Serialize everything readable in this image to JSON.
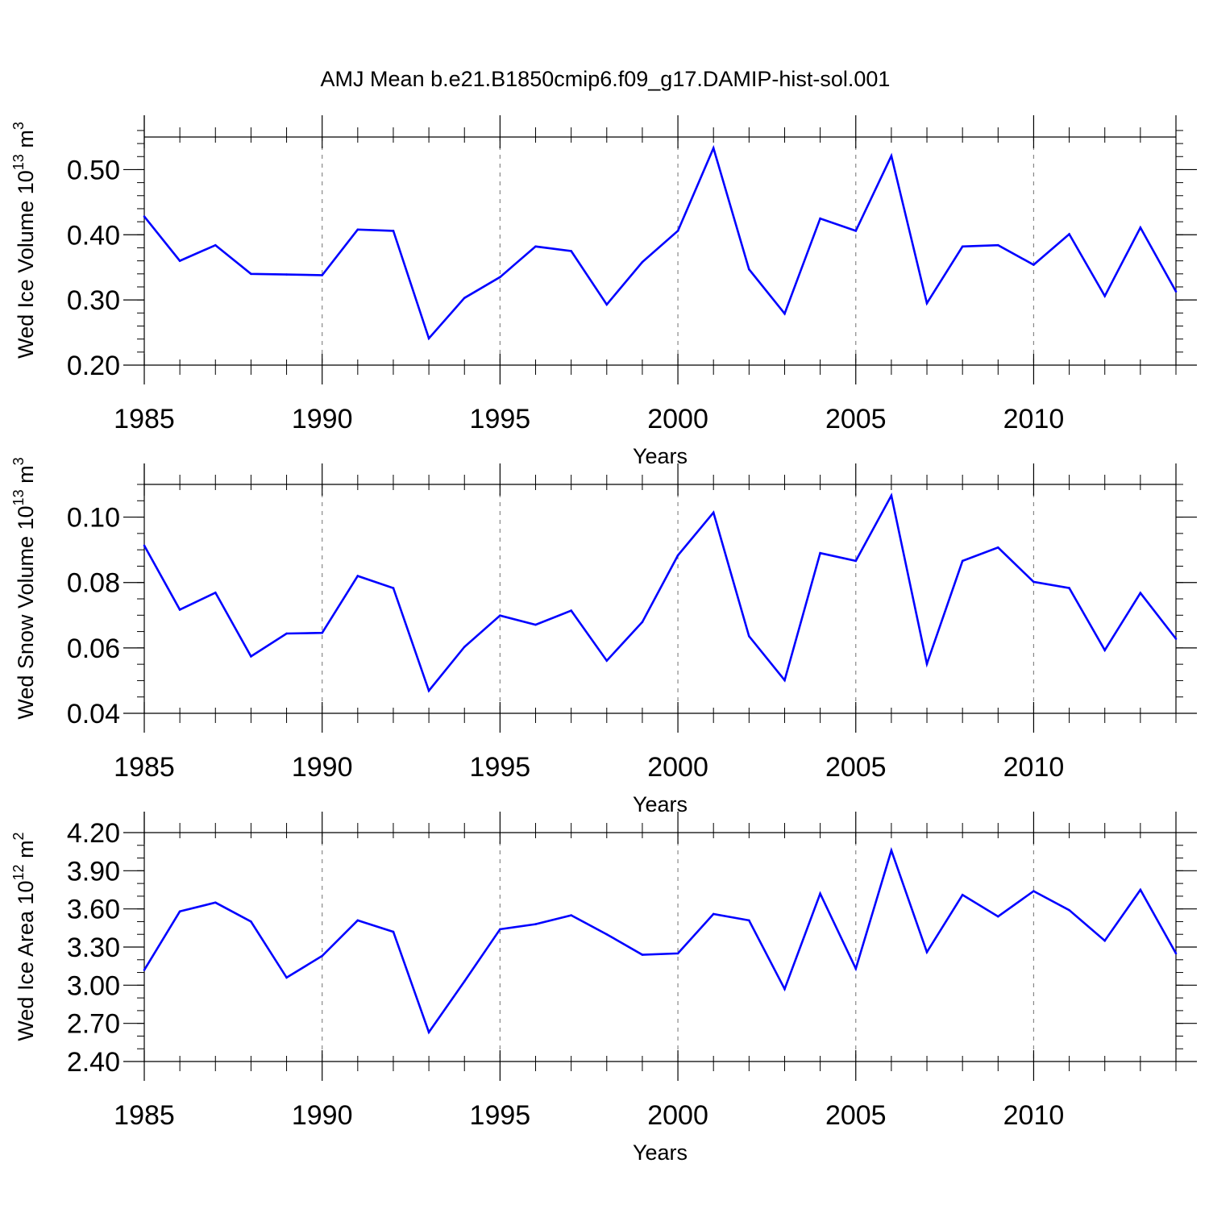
{
  "title": "AMJ Mean b.e21.B1850cmip6.f09_g17.DAMIP-hist-sol.001",
  "line_color": "#0000ff",
  "chart_data": [
    {
      "type": "line",
      "name": "ice-volume",
      "ylabel_main": "Wed Ice Volume 10",
      "ylabel_exp": "13",
      "ylabel_unit": " m",
      "ylabel_unit_exp": "3",
      "xlabel": "Years",
      "xlim": [
        1985,
        2014
      ],
      "ylim": [
        0.2,
        0.55
      ],
      "xticks": [
        1985,
        1990,
        1995,
        2000,
        2005,
        2010
      ],
      "xtick_labels": [
        "1985",
        "1990",
        "1995",
        "2000",
        "2005",
        "2010"
      ],
      "yticks": [
        0.2,
        0.3,
        0.4,
        0.5
      ],
      "ytick_labels": [
        "0.20",
        "0.30",
        "0.40",
        "0.50"
      ],
      "yminor_step": 0.02,
      "x": [
        1985,
        1986,
        1987,
        1988,
        1989,
        1990,
        1991,
        1992,
        1993,
        1994,
        1995,
        1996,
        1997,
        1998,
        1999,
        2000,
        2001,
        2002,
        2003,
        2004,
        2005,
        2006,
        2007,
        2008,
        2009,
        2010,
        2011,
        2012,
        2013,
        2014
      ],
      "values": [
        0.428,
        0.36,
        0.384,
        0.34,
        0.339,
        0.338,
        0.408,
        0.406,
        0.241,
        0.303,
        0.335,
        0.382,
        0.375,
        0.293,
        0.358,
        0.406,
        0.533,
        0.347,
        0.279,
        0.425,
        0.406,
        0.521,
        0.295,
        0.382,
        0.384,
        0.354,
        0.401,
        0.306,
        0.411,
        0.313
      ]
    },
    {
      "type": "line",
      "name": "snow-volume",
      "ylabel_main": "Wed Snow Volume 10",
      "ylabel_exp": "13",
      "ylabel_unit": " m",
      "ylabel_unit_exp": "3",
      "xlabel": "Years",
      "xlim": [
        1985,
        2014
      ],
      "ylim": [
        0.04,
        0.11
      ],
      "xticks": [
        1985,
        1990,
        1995,
        2000,
        2005,
        2010
      ],
      "xtick_labels": [
        "1985",
        "1990",
        "1995",
        "2000",
        "2005",
        "2010"
      ],
      "yticks": [
        0.04,
        0.06,
        0.08,
        0.1
      ],
      "ytick_labels": [
        "0.04",
        "0.06",
        "0.08",
        "0.10"
      ],
      "yminor_step": 0.005,
      "x": [
        1985,
        1986,
        1987,
        1988,
        1989,
        1990,
        1991,
        1992,
        1993,
        1994,
        1995,
        1996,
        1997,
        1998,
        1999,
        2000,
        2001,
        2002,
        2003,
        2004,
        2005,
        2006,
        2007,
        2008,
        2009,
        2010,
        2011,
        2012,
        2013,
        2014
      ],
      "values": [
        0.0913,
        0.0717,
        0.0769,
        0.0574,
        0.0644,
        0.0646,
        0.082,
        0.0783,
        0.0469,
        0.0603,
        0.0699,
        0.0671,
        0.0714,
        0.0561,
        0.0679,
        0.0883,
        0.1014,
        0.0636,
        0.0501,
        0.089,
        0.0866,
        0.1066,
        0.0551,
        0.0866,
        0.0907,
        0.0802,
        0.0783,
        0.0593,
        0.0768,
        0.0628
      ]
    },
    {
      "type": "line",
      "name": "ice-area",
      "ylabel_main": "Wed Ice Area 10",
      "ylabel_exp": "12",
      "ylabel_unit": " m",
      "ylabel_unit_exp": "2",
      "xlabel": "Years",
      "xlim": [
        1985,
        2014
      ],
      "ylim": [
        2.4,
        4.2
      ],
      "xticks": [
        1985,
        1990,
        1995,
        2000,
        2005,
        2010
      ],
      "xtick_labels": [
        "1985",
        "1990",
        "1995",
        "2000",
        "2005",
        "2010"
      ],
      "yticks": [
        2.4,
        2.7,
        3.0,
        3.3,
        3.6,
        3.9,
        4.2
      ],
      "ytick_labels": [
        "2.40",
        "2.70",
        "3.00",
        "3.30",
        "3.60",
        "3.90",
        "4.20"
      ],
      "yminor_step": 0.1,
      "x": [
        1985,
        1986,
        1987,
        1988,
        1989,
        1990,
        1991,
        1992,
        1993,
        1994,
        1995,
        1996,
        1997,
        1998,
        1999,
        2000,
        2001,
        2002,
        2003,
        2004,
        2005,
        2006,
        2007,
        2008,
        2009,
        2010,
        2011,
        2012,
        2013,
        2014
      ],
      "values": [
        3.12,
        3.58,
        3.65,
        3.5,
        3.06,
        3.23,
        3.51,
        3.42,
        2.63,
        3.03,
        3.44,
        3.48,
        3.55,
        3.4,
        3.24,
        3.25,
        3.56,
        3.51,
        2.97,
        3.72,
        3.13,
        4.06,
        3.26,
        3.71,
        3.54,
        3.74,
        3.59,
        3.35,
        3.75,
        3.25
      ]
    }
  ]
}
